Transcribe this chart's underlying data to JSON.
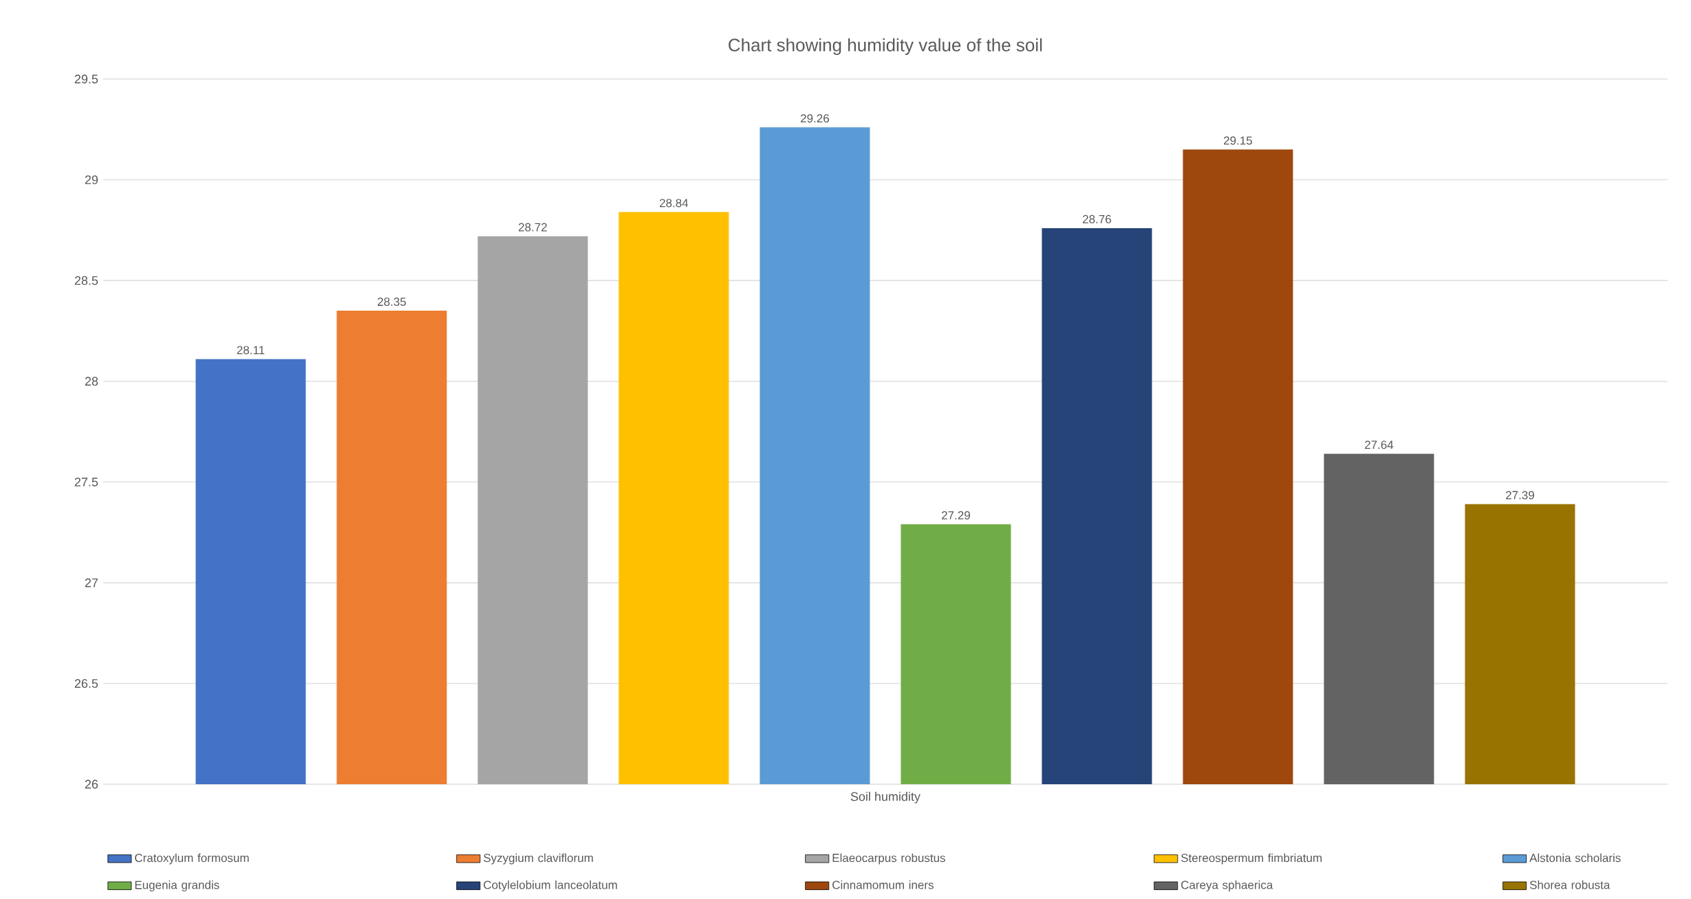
{
  "chart_data": {
    "type": "bar",
    "title": "Chart showing humidity value of the soil",
    "categories": [
      "Soil humidity"
    ],
    "series": [
      {
        "name": "Cratoxylum formosum",
        "color": "#4472c4",
        "values": [
          28.11
        ]
      },
      {
        "name": "Syzygium claviflorum",
        "color": "#ed7d31",
        "values": [
          28.35
        ]
      },
      {
        "name": "Elaeocarpus robustus",
        "color": "#a5a5a5",
        "values": [
          28.72
        ]
      },
      {
        "name": "Stereospermum fimbriatum",
        "color": "#ffc000",
        "values": [
          28.84
        ]
      },
      {
        "name": "Alstonia scholaris",
        "color": "#5b9bd5",
        "values": [
          29.26
        ]
      },
      {
        "name": "Eugenia grandis",
        "color": "#70ad47",
        "values": [
          27.29
        ]
      },
      {
        "name": "Cotylelobium lanceolatum",
        "color": "#264478",
        "values": [
          28.76
        ]
      },
      {
        "name": "Cinnamomum iners",
        "color": "#9e480e",
        "values": [
          29.15
        ]
      },
      {
        "name": "Careya sphaerica",
        "color": "#636363",
        "values": [
          27.64
        ]
      },
      {
        "name": "Shorea robusta",
        "color": "#997300",
        "values": [
          27.39
        ]
      }
    ],
    "ylim": [
      26,
      29.5
    ],
    "yticks": [
      26,
      26.5,
      27,
      27.5,
      28,
      28.5,
      29,
      29.5
    ],
    "grid": "y",
    "legend": "bottom",
    "data_labels": true
  }
}
